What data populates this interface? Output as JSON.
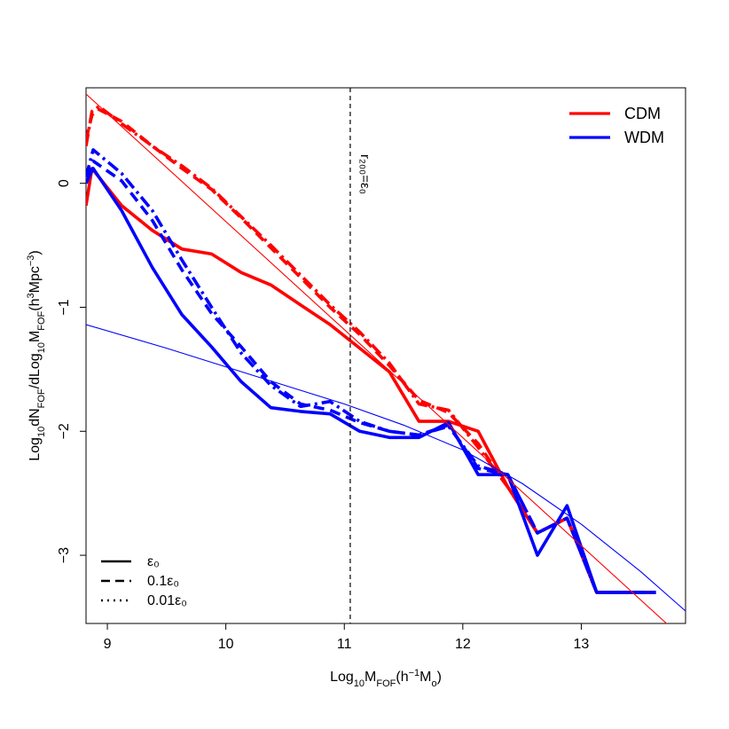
{
  "chart_data": {
    "type": "line",
    "xlabel": "Log₁₀M_FOF(h⁻¹M₀)",
    "ylabel": "Log₁₀dN_FOF/dLog₁₀M_FOF(h³Mpc⁻³)",
    "xlim": [
      8.82,
      13.88
    ],
    "ylim": [
      -3.55,
      0.77
    ],
    "x_ticks": [
      9,
      10,
      11,
      12,
      13
    ],
    "y_ticks": [
      0,
      -1,
      -2,
      -3
    ],
    "annotation": {
      "x": 11.05,
      "label": "r₂₀₀=ε₀"
    },
    "colors": {
      "CDM": "#ff0000",
      "WDM": "#0000ff"
    },
    "legend_models": [
      {
        "label": "CDM",
        "color": "#ff0000"
      },
      {
        "label": "WDM",
        "color": "#0000ff"
      }
    ],
    "legend_softening": [
      {
        "label": "ε₀",
        "style": "solid"
      },
      {
        "label": "0.1ε₀",
        "style": "dashed"
      },
      {
        "label": "0.01ε₀",
        "style": "dotted"
      }
    ],
    "series": [
      {
        "model": "CDM",
        "style": "solid",
        "weight": "thick",
        "x": [
          8.82,
          8.87,
          9.12,
          9.38,
          9.63,
          9.88,
          10.13,
          10.38,
          10.63,
          10.88,
          11.13,
          11.38,
          11.63,
          11.88,
          12.13,
          12.38,
          12.63,
          12.88,
          13.13,
          13.38,
          13.63
        ],
        "y": [
          -0.18,
          0.12,
          -0.18,
          -0.38,
          -0.53,
          -0.57,
          -0.72,
          -0.82,
          -0.98,
          -1.14,
          -1.33,
          -1.52,
          -1.92,
          -1.92,
          -2.0,
          -2.45,
          -2.82,
          -2.7,
          -3.3,
          -3.3,
          -3.3
        ]
      },
      {
        "model": "CDM",
        "style": "dashed",
        "weight": "thick",
        "x": [
          8.82,
          8.87,
          8.92,
          9.12,
          9.38,
          9.63,
          9.88,
          10.13,
          10.38,
          10.63,
          10.88,
          11.13,
          11.38,
          11.63,
          11.88,
          12.13,
          12.38,
          12.63,
          12.88,
          13.13,
          13.38,
          13.63
        ],
        "y": [
          0.35,
          0.55,
          0.6,
          0.5,
          0.3,
          0.12,
          -0.05,
          -0.28,
          -0.52,
          -0.76,
          -1.0,
          -1.22,
          -1.47,
          -1.75,
          -1.85,
          -2.1,
          -2.45,
          -2.82,
          -2.7,
          -3.3,
          -3.3,
          -3.3
        ]
      },
      {
        "model": "CDM",
        "style": "dashdot",
        "weight": "thick",
        "x": [
          8.82,
          8.87,
          8.93,
          9.12,
          9.38,
          9.63,
          9.88,
          10.13,
          10.38,
          10.63,
          10.88,
          11.13,
          11.38,
          11.63,
          11.88,
          12.13,
          12.38,
          12.63,
          12.88,
          13.13,
          13.38,
          13.63
        ],
        "y": [
          0.3,
          0.58,
          0.62,
          0.48,
          0.3,
          0.14,
          -0.04,
          -0.27,
          -0.5,
          -0.74,
          -0.98,
          -1.2,
          -1.45,
          -1.78,
          -1.83,
          -2.13,
          -2.45,
          -2.82,
          -2.7,
          -3.3,
          -3.3,
          -3.3
        ]
      },
      {
        "model": "WDM",
        "style": "solid",
        "weight": "thick",
        "x": [
          8.82,
          8.88,
          9.12,
          9.38,
          9.63,
          9.88,
          10.13,
          10.38,
          10.63,
          10.88,
          11.13,
          11.38,
          11.63,
          11.88,
          12.13,
          12.38,
          12.63,
          12.88,
          13.13,
          13.38,
          13.63
        ],
        "y": [
          0.0,
          0.12,
          -0.22,
          -0.68,
          -1.06,
          -1.32,
          -1.6,
          -1.81,
          -1.84,
          -1.86,
          -2.0,
          -2.05,
          -2.05,
          -1.93,
          -2.35,
          -2.35,
          -3.0,
          -2.6,
          -3.3,
          -3.3,
          -3.3
        ]
      },
      {
        "model": "WDM",
        "style": "dashed",
        "weight": "thick",
        "x": [
          8.82,
          8.88,
          9.12,
          9.38,
          9.63,
          9.88,
          10.13,
          10.38,
          10.63,
          10.88,
          11.13,
          11.38,
          11.63,
          11.88,
          12.13,
          12.38,
          12.63,
          12.88,
          13.13,
          13.38,
          13.63
        ],
        "y": [
          0.05,
          0.18,
          0.02,
          -0.3,
          -0.7,
          -1.05,
          -1.32,
          -1.6,
          -1.78,
          -1.83,
          -1.93,
          -2.0,
          -2.03,
          -1.95,
          -2.3,
          -2.35,
          -2.82,
          -2.7,
          -3.3,
          -3.3,
          -3.3
        ]
      },
      {
        "model": "WDM",
        "style": "dashdot",
        "weight": "thick",
        "x": [
          8.82,
          8.88,
          9.12,
          9.38,
          9.63,
          9.88,
          10.13,
          10.38,
          10.63,
          10.88,
          11.13,
          11.38,
          11.63,
          11.88,
          12.13,
          12.38,
          12.63,
          12.88,
          13.13,
          13.38,
          13.63
        ],
        "y": [
          0.05,
          0.27,
          0.08,
          -0.22,
          -0.62,
          -1.0,
          -1.37,
          -1.63,
          -1.8,
          -1.76,
          -1.92,
          -2.0,
          -2.03,
          -1.96,
          -2.28,
          -2.35,
          -2.82,
          -2.7,
          -3.3,
          -3.3,
          -3.3
        ]
      },
      {
        "model": "CDM",
        "style": "solid",
        "weight": "thin",
        "x": [
          8.82,
          13.88
        ],
        "y": [
          0.72,
          -3.69
        ]
      },
      {
        "model": "WDM",
        "style": "solid",
        "weight": "thin",
        "x": [
          8.82,
          9.5,
          10.0,
          10.5,
          11.0,
          11.5,
          12.0,
          12.5,
          13.0,
          13.5,
          13.88
        ],
        "y": [
          -1.14,
          -1.33,
          -1.48,
          -1.63,
          -1.78,
          -1.95,
          -2.15,
          -2.42,
          -2.75,
          -3.13,
          -3.45
        ]
      }
    ]
  }
}
